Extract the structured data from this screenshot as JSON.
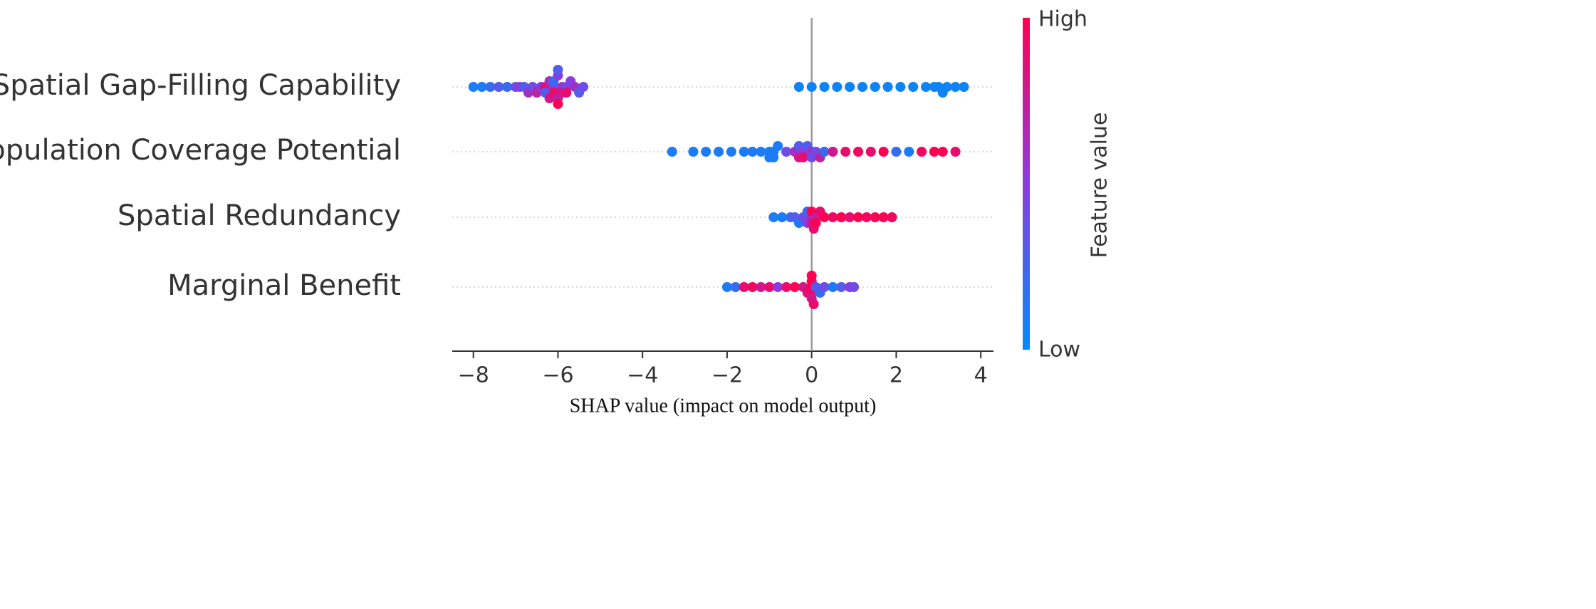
{
  "chart_data": {
    "type": "beeswarm",
    "xlabel": "SHAP value (impact on model output)",
    "xlim": [
      -8.5,
      4.3
    ],
    "xticks": [
      {
        "value": -8,
        "label": "−8"
      },
      {
        "value": -6,
        "label": "−6"
      },
      {
        "value": -4,
        "label": "−4"
      },
      {
        "value": -2,
        "label": "−2"
      },
      0,
      2,
      4
    ],
    "color_low": "#008bfb",
    "color_high": "#ff0052",
    "colorbar_high": "High",
    "colorbar_low": "Low",
    "colorbar_label": "Feature value",
    "series": [
      {
        "name": "Spatial Gap-Filling Capability",
        "values": [
          -8.0,
          -7.8,
          -7.6,
          -7.4,
          -7.2,
          -7.0,
          -6.9,
          -6.8,
          -6.7,
          -6.6,
          -6.5,
          -6.4,
          -6.3,
          -6.3,
          -6.2,
          -6.2,
          -6.1,
          -6.1,
          -6.1,
          -6.0,
          -6.0,
          -6.0,
          -6.0,
          -5.9,
          -5.9,
          -5.8,
          -5.8,
          -5.7,
          -5.6,
          -5.5,
          -5.4,
          -0.3,
          0.0,
          0.3,
          0.6,
          0.9,
          1.2,
          1.5,
          1.8,
          2.1,
          2.4,
          2.7,
          2.9,
          3.0,
          3.1,
          3.2,
          3.4,
          3.6
        ],
        "feature_values": [
          0.1,
          0.1,
          0.2,
          0.3,
          0.2,
          0.4,
          0.5,
          0.3,
          0.6,
          0.4,
          0.7,
          0.5,
          0.9,
          0.3,
          0.6,
          0.8,
          0.4,
          0.9,
          0.2,
          0.7,
          0.5,
          1.0,
          0.3,
          0.6,
          0.8,
          0.4,
          0.9,
          0.5,
          0.6,
          0.3,
          0.4,
          0.05,
          0.05,
          0.05,
          0.05,
          0.05,
          0.05,
          0.05,
          0.05,
          0.05,
          0.05,
          0.05,
          0.05,
          0.05,
          0.05,
          0.05,
          0.05,
          0.05
        ]
      },
      {
        "name": "Population Coverage Potential",
        "values": [
          -3.3,
          -2.8,
          -2.5,
          -2.2,
          -1.9,
          -1.6,
          -1.4,
          -1.2,
          -1.0,
          -1.0,
          -0.9,
          -0.9,
          -0.8,
          -0.6,
          -0.4,
          -0.3,
          -0.3,
          -0.2,
          -0.2,
          -0.1,
          0.0,
          0.0,
          0.1,
          0.2,
          0.3,
          0.5,
          0.8,
          1.1,
          1.4,
          1.7,
          2.0,
          2.3,
          2.6,
          2.9,
          3.1,
          3.4
        ],
        "feature_values": [
          0.1,
          0.1,
          0.1,
          0.1,
          0.1,
          0.1,
          0.1,
          0.1,
          0.1,
          0.1,
          0.1,
          0.1,
          0.1,
          0.4,
          0.6,
          0.8,
          0.3,
          0.5,
          0.9,
          0.3,
          0.6,
          0.4,
          0.4,
          0.7,
          0.2,
          0.8,
          0.9,
          0.95,
          0.9,
          1.0,
          0.2,
          0.1,
          0.95,
          1.0,
          1.0,
          0.9
        ]
      },
      {
        "name": "Spatial Redundancy",
        "values": [
          -0.9,
          -0.7,
          -0.5,
          -0.4,
          -0.3,
          -0.2,
          -0.1,
          -0.1,
          0.0,
          0.0,
          0.0,
          0.05,
          0.1,
          0.1,
          0.2,
          0.3,
          0.5,
          0.7,
          0.9,
          1.1,
          1.3,
          1.5,
          1.7,
          1.9
        ],
        "feature_values": [
          0.1,
          0.1,
          0.2,
          0.3,
          0.1,
          0.4,
          0.5,
          0.2,
          0.6,
          0.8,
          1.0,
          0.9,
          0.7,
          1.0,
          0.9,
          1.0,
          0.95,
          1.0,
          0.9,
          1.0,
          0.95,
          1.0,
          1.0,
          0.95
        ]
      },
      {
        "name": "Marginal Benefit",
        "values": [
          -2.0,
          -1.8,
          -1.6,
          -1.4,
          -1.2,
          -1.0,
          -0.8,
          -0.6,
          -0.4,
          -0.2,
          -0.1,
          0.0,
          0.0,
          0.0,
          0.0,
          0.0,
          0.05,
          0.1,
          0.2,
          0.3,
          0.5,
          0.7,
          0.9,
          1.0
        ],
        "feature_values": [
          0.1,
          0.2,
          0.9,
          0.95,
          0.8,
          0.9,
          0.5,
          0.9,
          1.0,
          0.8,
          0.9,
          1.0,
          0.9,
          1.0,
          0.8,
          1.0,
          0.9,
          0.3,
          0.2,
          0.4,
          0.1,
          0.3,
          0.5,
          0.4
        ]
      }
    ]
  }
}
